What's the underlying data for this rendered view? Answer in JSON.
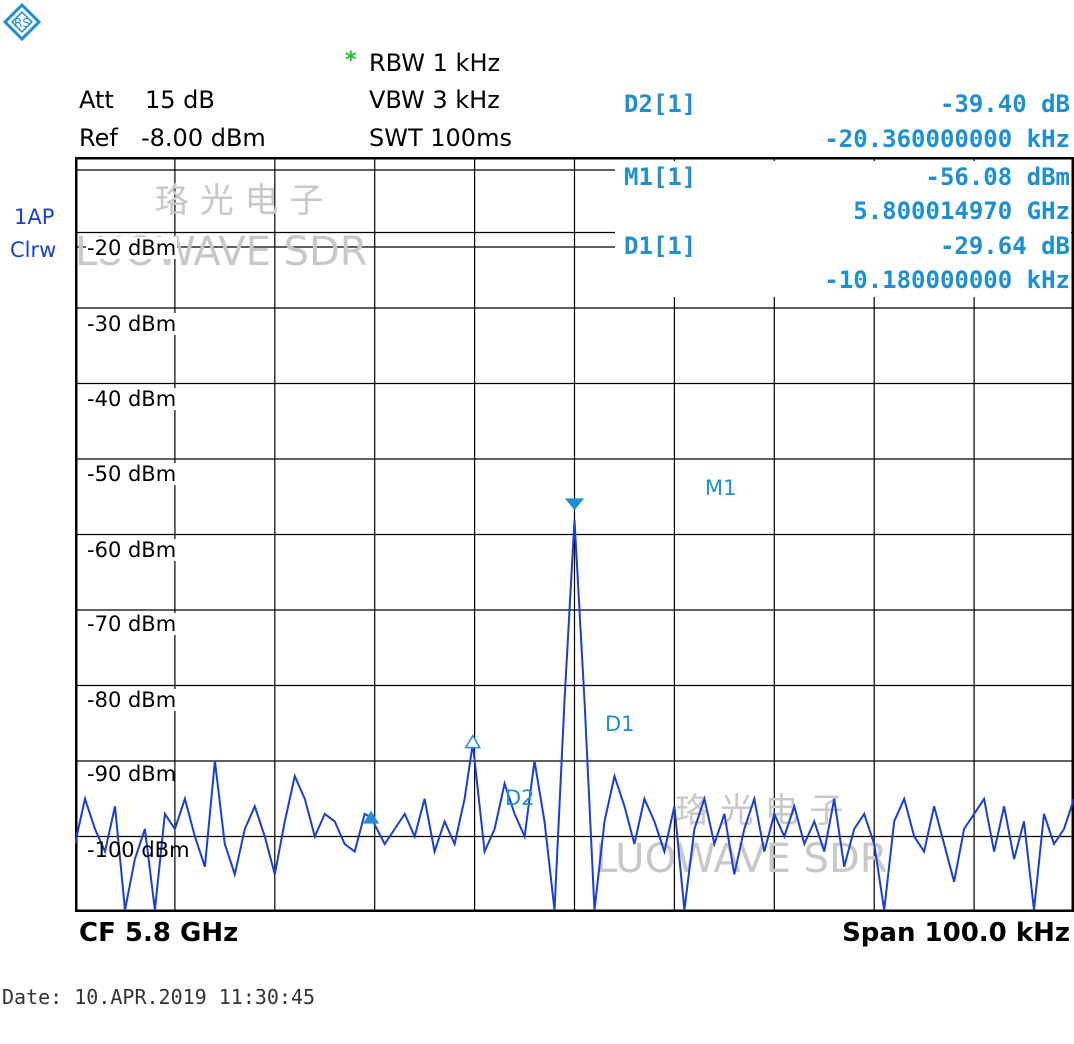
{
  "header": {
    "rbw_star": "*",
    "rbw": "RBW 1 kHz",
    "att_label": "Att",
    "att_value": "15 dB",
    "vbw": "VBW 3 kHz",
    "ref_label": "Ref",
    "ref_value": "-8.00 dBm",
    "swt": "SWT 100ms"
  },
  "markers": [
    {
      "name": "D2[1]",
      "value": "-39.40 dB",
      "position": "-20.360000000 kHz"
    },
    {
      "name": "M1[1]",
      "value": "-56.08 dBm",
      "position": "5.800014970 GHz"
    },
    {
      "name": "D1[1]",
      "value": "-29.64 dB",
      "position": "-10.180000000 kHz"
    }
  ],
  "trace_label": {
    "line1": "1AP",
    "line2": "Clrw"
  },
  "levels": [
    "-20 dBm",
    "-30 dBm",
    "-40 dBm",
    "-50 dBm",
    "-60 dBm",
    "-70 dBm",
    "-80 dBm",
    "-90 dBm",
    "-100 dBm"
  ],
  "marker_labels": {
    "m1": "M1",
    "d1": "D1",
    "d2": "D2"
  },
  "footer": {
    "cf": "CF 5.8 GHz",
    "span": "Span 100.0 kHz"
  },
  "date": "Date: 10.APR.2019  11:30:45",
  "watermark": {
    "cn": "珞 光 电 子",
    "en": "LUOWAVE SDR"
  },
  "colors": {
    "trace": "#1a3fd0",
    "marker": "#1e8fd0",
    "grid": "#000000",
    "star": "#19c419"
  },
  "chart_data": {
    "type": "line",
    "x_center": "5.8 GHz",
    "x_span_khz": 100.0,
    "xlim_khz": [
      -50,
      50
    ],
    "ylim_dbm": [
      -108,
      -8
    ],
    "grid": true,
    "series": [
      {
        "x": [
          -50,
          -49,
          -48,
          -47,
          -46,
          -45,
          -44,
          -43,
          -42,
          -41,
          -40,
          -39,
          -38,
          -37,
          -36,
          -35,
          -34,
          -33,
          -32,
          -31,
          -30,
          -29,
          -28,
          -27,
          -26,
          -25,
          -24,
          -23,
          -22,
          -21,
          -20.36,
          -19,
          -18,
          -17,
          -16,
          -15,
          -14,
          -13,
          -12,
          -11,
          -10.18,
          -9,
          -8,
          -7,
          -6,
          -5,
          -4,
          -3,
          -2,
          -1,
          0,
          1,
          2,
          3,
          4,
          5,
          6,
          7,
          8,
          9,
          10,
          11,
          12,
          13,
          14,
          15,
          16,
          17,
          18,
          19,
          20,
          21,
          22,
          23,
          24,
          25,
          26,
          27,
          28,
          29,
          30,
          31,
          32,
          33,
          34,
          35,
          36,
          37,
          38,
          39,
          40,
          41,
          42,
          43,
          44,
          45,
          46,
          47,
          48,
          49,
          50
        ],
        "y": [
          -99,
          -93,
          -97,
          -100,
          -94,
          -108,
          -101,
          -97,
          -108,
          -95,
          -97,
          -93,
          -98,
          -102,
          -88,
          -99,
          -103,
          -97,
          -94,
          -98,
          -103,
          -96,
          -90,
          -93,
          -98,
          -95,
          -96,
          -99,
          -100,
          -95,
          -95.5,
          -99,
          -97,
          -95,
          -98,
          -93,
          -100,
          -96,
          -99,
          -93,
          -85.7,
          -100,
          -97,
          -91,
          -95,
          -98,
          -88,
          -96,
          -108,
          -80,
          -56.08,
          -80,
          -108,
          -96,
          -90,
          -94,
          -99,
          -93,
          -96,
          -100,
          -94,
          -108,
          -97,
          -93,
          -99,
          -95,
          -103,
          -97,
          -93,
          -100,
          -95,
          -98,
          -94,
          -99,
          -96,
          -100,
          -93,
          -102,
          -97,
          -95,
          -99,
          -108,
          -96,
          -93,
          -98,
          -100,
          -94,
          -99,
          -104,
          -97,
          -95,
          -93,
          -100,
          -94,
          -101,
          -96,
          -108,
          -95,
          -99,
          -97,
          -93
        ]
      }
    ]
  }
}
